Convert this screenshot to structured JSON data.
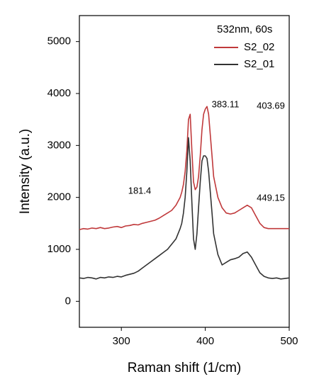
{
  "chart_data": {
    "type": "line",
    "xlabel": "Raman shift (1/cm)",
    "ylabel": "Intensity (a.u.)",
    "legend_title": "532nm, 60s",
    "legend": "upper right",
    "annotations": [
      "383.11",
      "403.69",
      "181.4",
      "449.15"
    ],
    "xlim": [
      250,
      500
    ],
    "xticks": [
      300,
      400,
      500
    ],
    "ylim": [
      -500,
      5500
    ],
    "yticks": [
      0,
      1000,
      2000,
      3000,
      4000,
      5000
    ],
    "x": [
      250,
      255,
      260,
      265,
      270,
      275,
      280,
      285,
      290,
      295,
      300,
      305,
      310,
      315,
      320,
      325,
      330,
      335,
      340,
      345,
      350,
      355,
      360,
      365,
      370,
      372,
      374,
      376,
      378,
      380,
      382,
      384,
      386,
      388,
      390,
      392,
      394,
      396,
      398,
      400,
      402,
      404,
      406,
      408,
      410,
      415,
      420,
      425,
      430,
      435,
      440,
      445,
      450,
      455,
      460,
      465,
      470,
      475,
      480,
      485,
      490,
      495,
      500
    ],
    "series": [
      {
        "name": "S2_02",
        "color": "#c0393b",
        "values": [
          1380,
          1400,
          1390,
          1410,
          1400,
          1420,
          1400,
          1410,
          1430,
          1440,
          1420,
          1450,
          1460,
          1480,
          1470,
          1500,
          1520,
          1540,
          1560,
          1600,
          1650,
          1700,
          1750,
          1850,
          2000,
          2100,
          2250,
          2500,
          2900,
          3500,
          3600,
          2900,
          2300,
          2150,
          2200,
          2400,
          2800,
          3300,
          3600,
          3700,
          3750,
          3600,
          3200,
          2800,
          2400,
          2000,
          1800,
          1700,
          1680,
          1700,
          1750,
          1800,
          1850,
          1800,
          1650,
          1500,
          1420,
          1400,
          1400,
          1400,
          1400,
          1400,
          1400
        ]
      },
      {
        "name": "S2_01",
        "color": "#333333",
        "values": [
          450,
          440,
          460,
          450,
          430,
          460,
          450,
          470,
          460,
          480,
          470,
          500,
          520,
          540,
          580,
          640,
          700,
          760,
          820,
          880,
          940,
          1000,
          1100,
          1200,
          1400,
          1500,
          1700,
          2000,
          2500,
          3150,
          2700,
          1900,
          1200,
          1000,
          1300,
          1800,
          2300,
          2700,
          2800,
          2800,
          2750,
          2500,
          2100,
          1700,
          1300,
          900,
          700,
          750,
          800,
          820,
          850,
          920,
          950,
          850,
          700,
          550,
          480,
          450,
          440,
          450,
          430,
          440,
          450
        ]
      }
    ]
  }
}
